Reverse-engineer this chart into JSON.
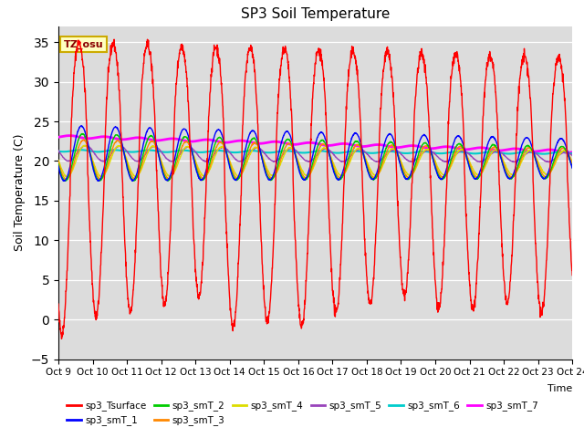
{
  "title": "SP3 Soil Temperature",
  "ylabel": "Soil Temperature (C)",
  "ylim": [
    -5,
    37
  ],
  "yticks": [
    -5,
    0,
    5,
    10,
    15,
    20,
    25,
    30,
    35
  ],
  "xtick_labels": [
    "Oct 9",
    "Oct 10",
    "Oct 11",
    "Oct 12",
    "Oct 13",
    "Oct 14",
    "Oct 15",
    "Oct 16",
    "Oct 17",
    "Oct 18",
    "Oct 19",
    "Oct 20",
    "Oct 21",
    "Oct 22",
    "Oct 23",
    "Oct 24"
  ],
  "xlabel_time": "Time",
  "background_color": "#dcdcdc",
  "annotation_text": "TZ_osu",
  "annotation_box_facecolor": "#ffffc0",
  "annotation_box_edgecolor": "#ccaa00",
  "series_order": [
    "sp3_smT_7",
    "sp3_smT_6",
    "sp3_smT_5",
    "sp3_smT_4",
    "sp3_smT_3",
    "sp3_smT_2",
    "sp3_smT_1",
    "sp3_Tsurface"
  ],
  "series": {
    "sp3_Tsurface": {
      "color": "#ff0000",
      "linewidth": 1.0,
      "zorder": 10
    },
    "sp3_smT_1": {
      "color": "#0000ff",
      "linewidth": 1.0,
      "zorder": 9
    },
    "sp3_smT_2": {
      "color": "#00cc00",
      "linewidth": 1.0,
      "zorder": 8
    },
    "sp3_smT_3": {
      "color": "#ff8800",
      "linewidth": 1.0,
      "zorder": 7
    },
    "sp3_smT_4": {
      "color": "#dddd00",
      "linewidth": 1.0,
      "zorder": 6
    },
    "sp3_smT_5": {
      "color": "#9944bb",
      "linewidth": 1.0,
      "zorder": 5
    },
    "sp3_smT_6": {
      "color": "#00cccc",
      "linewidth": 1.5,
      "zorder": 4
    },
    "sp3_smT_7": {
      "color": "#ff00ff",
      "linewidth": 2.0,
      "zorder": 3
    }
  },
  "n_days": 15,
  "pts_per_day": 144
}
